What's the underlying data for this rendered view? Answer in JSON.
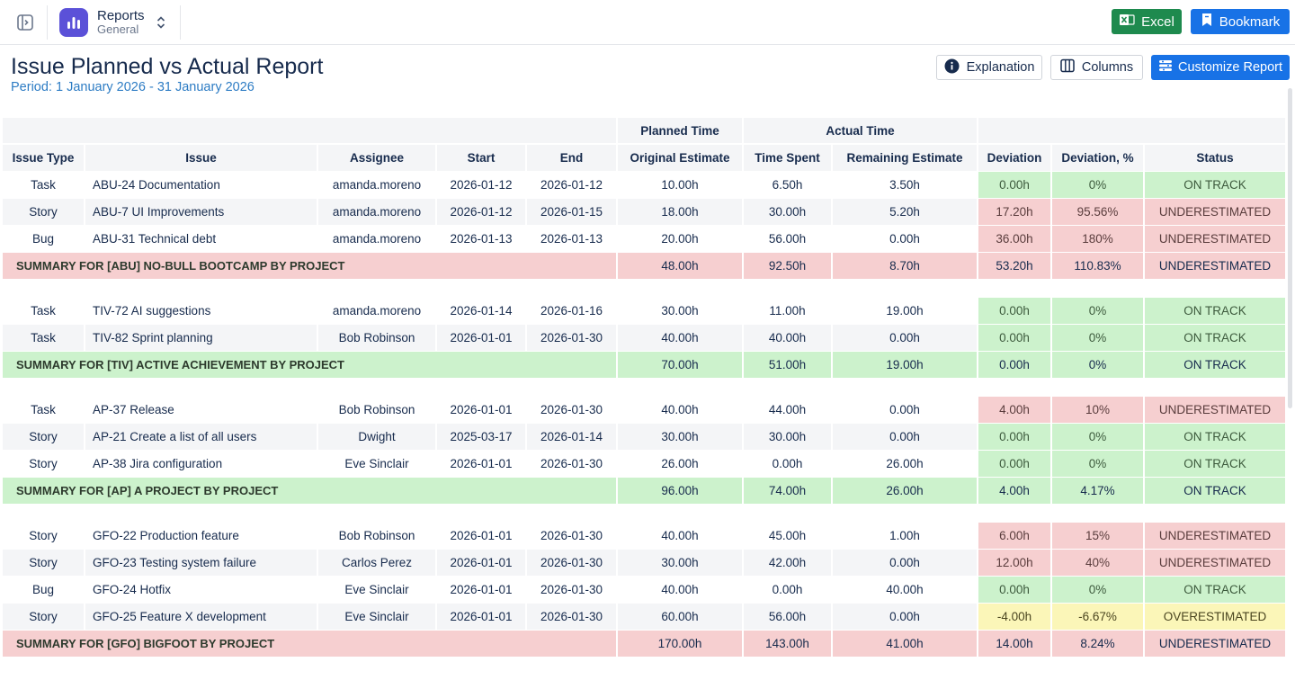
{
  "topbar": {
    "app_name": "Reports",
    "app_subtitle": "General",
    "excel_label": "Excel",
    "bookmark_label": "Bookmark"
  },
  "header": {
    "title": "Issue Planned vs Actual Report",
    "period": "Period: 1 January 2026 - 31 January 2026",
    "explanation_label": "Explanation",
    "columns_label": "Columns",
    "customize_label": "Customize Report"
  },
  "colors": {
    "green": "#ccf2cc",
    "red": "#f6cfd0",
    "yellow": "#fbf6b8",
    "primary": "#1872e6",
    "excel": "#1e8a4e"
  },
  "table": {
    "group_headers": {
      "planned": "Planned Time",
      "actual": "Actual Time"
    },
    "columns": [
      "Issue Type",
      "Issue",
      "Assignee",
      "Start",
      "End",
      "Original Estimate",
      "Time Spent",
      "Remaining Estimate",
      "Deviation",
      "Deviation, %",
      "Status"
    ],
    "groups": [
      {
        "rows": [
          {
            "type": "Task",
            "issue": "ABU-24 Documentation",
            "assignee": "amanda.moreno",
            "start": "2026-01-12",
            "end": "2026-01-12",
            "orig": "10.00h",
            "spent": "6.50h",
            "remaining": "3.50h",
            "dev": "0.00h",
            "dev_pct": "0%",
            "status": "ON TRACK",
            "tone": "green"
          },
          {
            "type": "Story",
            "issue": "ABU-7 UI Improvements",
            "assignee": "amanda.moreno",
            "start": "2026-01-12",
            "end": "2026-01-15",
            "orig": "18.00h",
            "spent": "30.00h",
            "remaining": "5.20h",
            "dev": "17.20h",
            "dev_pct": "95.56%",
            "status": "UNDERESTIMATED",
            "tone": "red"
          },
          {
            "type": "Bug",
            "issue": "ABU-31 Technical debt",
            "assignee": "amanda.moreno",
            "start": "2026-01-13",
            "end": "2026-01-13",
            "orig": "20.00h",
            "spent": "56.00h",
            "remaining": "0.00h",
            "dev": "36.00h",
            "dev_pct": "180%",
            "status": "UNDERESTIMATED",
            "tone": "red"
          }
        ],
        "summary": {
          "label": "SUMMARY FOR [ABU] NO-BULL BOOTCAMP BY PROJECT",
          "orig": "48.00h",
          "spent": "92.50h",
          "remaining": "8.70h",
          "dev": "53.20h",
          "dev_pct": "110.83%",
          "status": "UNDERESTIMATED",
          "tone": "red"
        }
      },
      {
        "rows": [
          {
            "type": "Task",
            "issue": "TIV-72 AI suggestions",
            "assignee": "amanda.moreno",
            "start": "2026-01-14",
            "end": "2026-01-16",
            "orig": "30.00h",
            "spent": "11.00h",
            "remaining": "19.00h",
            "dev": "0.00h",
            "dev_pct": "0%",
            "status": "ON TRACK",
            "tone": "green"
          },
          {
            "type": "Task",
            "issue": "TIV-82 Sprint planning",
            "assignee": "Bob Robinson",
            "start": "2026-01-01",
            "end": "2026-01-30",
            "orig": "40.00h",
            "spent": "40.00h",
            "remaining": "0.00h",
            "dev": "0.00h",
            "dev_pct": "0%",
            "status": "ON TRACK",
            "tone": "green"
          }
        ],
        "summary": {
          "label": "SUMMARY FOR [TIV] ACTIVE ACHIEVEMENT BY PROJECT",
          "orig": "70.00h",
          "spent": "51.00h",
          "remaining": "19.00h",
          "dev": "0.00h",
          "dev_pct": "0%",
          "status": "ON TRACK",
          "tone": "green"
        }
      },
      {
        "rows": [
          {
            "type": "Task",
            "issue": "AP-37 Release",
            "assignee": "Bob Robinson",
            "start": "2026-01-01",
            "end": "2026-01-30",
            "orig": "40.00h",
            "spent": "44.00h",
            "remaining": "0.00h",
            "dev": "4.00h",
            "dev_pct": "10%",
            "status": "UNDERESTIMATED",
            "tone": "red"
          },
          {
            "type": "Story",
            "issue": "AP-21 Create a list of all users",
            "assignee": "Dwight",
            "start": "2025-03-17",
            "end": "2026-01-14",
            "orig": "30.00h",
            "spent": "30.00h",
            "remaining": "0.00h",
            "dev": "0.00h",
            "dev_pct": "0%",
            "status": "ON TRACK",
            "tone": "green"
          },
          {
            "type": "Story",
            "issue": "AP-38 Jira configuration",
            "assignee": "Eve Sinclair",
            "start": "2026-01-01",
            "end": "2026-01-30",
            "orig": "26.00h",
            "spent": "0.00h",
            "remaining": "26.00h",
            "dev": "0.00h",
            "dev_pct": "0%",
            "status": "ON TRACK",
            "tone": "green"
          }
        ],
        "summary": {
          "label": "SUMMARY FOR [AP] A PROJECT BY PROJECT",
          "orig": "96.00h",
          "spent": "74.00h",
          "remaining": "26.00h",
          "dev": "4.00h",
          "dev_pct": "4.17%",
          "status": "ON TRACK",
          "tone": "green"
        }
      },
      {
        "rows": [
          {
            "type": "Story",
            "issue": "GFO-22 Production feature",
            "assignee": "Bob Robinson",
            "start": "2026-01-01",
            "end": "2026-01-30",
            "orig": "40.00h",
            "spent": "45.00h",
            "remaining": "1.00h",
            "dev": "6.00h",
            "dev_pct": "15%",
            "status": "UNDERESTIMATED",
            "tone": "red"
          },
          {
            "type": "Story",
            "issue": "GFO-23 Testing system failure",
            "assignee": "Carlos Perez",
            "start": "2026-01-01",
            "end": "2026-01-30",
            "orig": "30.00h",
            "spent": "42.00h",
            "remaining": "0.00h",
            "dev": "12.00h",
            "dev_pct": "40%",
            "status": "UNDERESTIMATED",
            "tone": "red"
          },
          {
            "type": "Bug",
            "issue": "GFO-24 Hotfix",
            "assignee": "Eve Sinclair",
            "start": "2026-01-01",
            "end": "2026-01-30",
            "orig": "40.00h",
            "spent": "0.00h",
            "remaining": "40.00h",
            "dev": "0.00h",
            "dev_pct": "0%",
            "status": "ON TRACK",
            "tone": "green"
          },
          {
            "type": "Story",
            "issue": "GFO-25 Feature X development",
            "assignee": "Eve Sinclair",
            "start": "2026-01-01",
            "end": "2026-01-30",
            "orig": "60.00h",
            "spent": "56.00h",
            "remaining": "0.00h",
            "dev": "-4.00h",
            "dev_pct": "-6.67%",
            "status": "OVERESTIMATED",
            "tone": "yellow"
          }
        ],
        "summary": {
          "label": "SUMMARY FOR [GFO] BIGFOOT BY PROJECT",
          "orig": "170.00h",
          "spent": "143.00h",
          "remaining": "41.00h",
          "dev": "14.00h",
          "dev_pct": "8.24%",
          "status": "UNDERESTIMATED",
          "tone": "red"
        }
      }
    ]
  }
}
